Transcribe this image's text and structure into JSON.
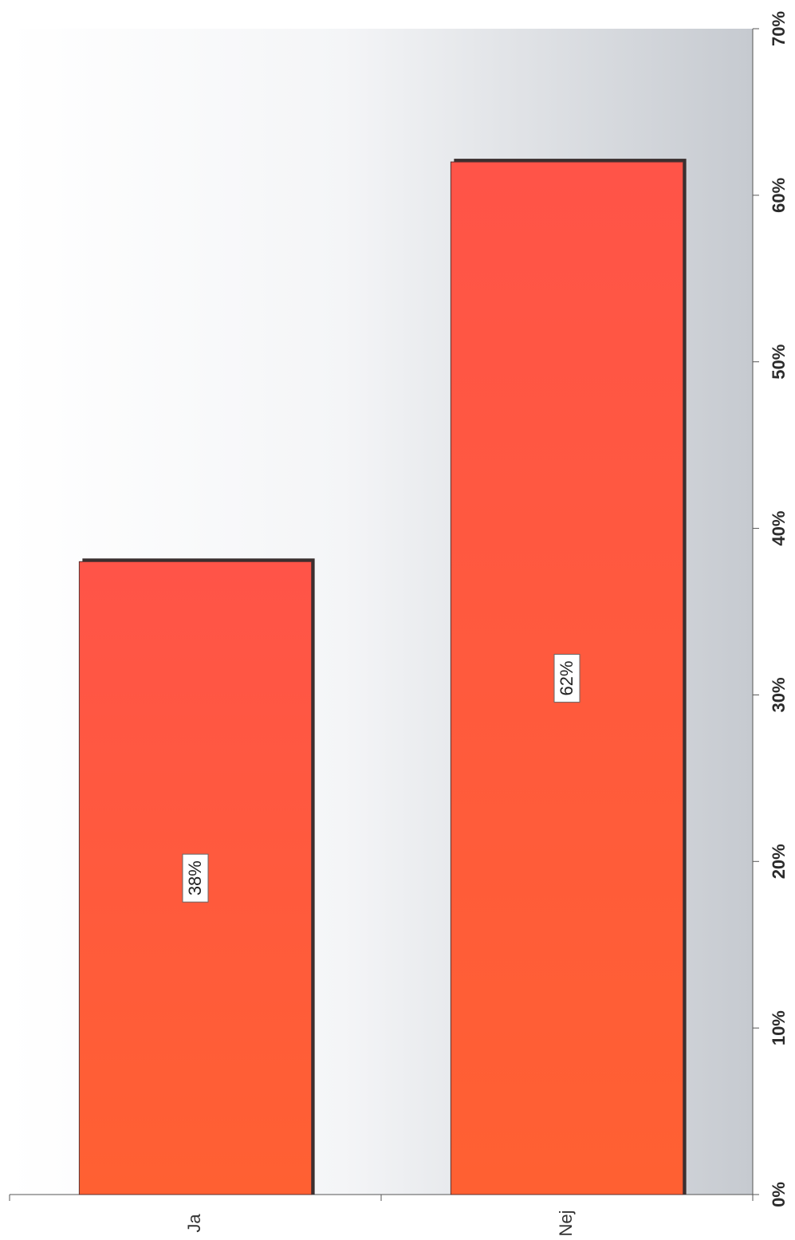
{
  "chart_data": {
    "type": "bar",
    "orientation": "horizontal",
    "categories": [
      "Ja",
      "Nej"
    ],
    "values": [
      38,
      62
    ],
    "data_labels": [
      "38%",
      "62%"
    ],
    "value_axis": {
      "range": [
        0,
        70
      ],
      "ticks": [
        0,
        10,
        20,
        30,
        40,
        50,
        60,
        70
      ],
      "tick_labels": [
        "0%",
        "10%",
        "20%",
        "30%",
        "40%",
        "50%",
        "60%",
        "70%"
      ]
    },
    "title": "",
    "xlabel": "",
    "ylabel": "",
    "grid": false,
    "legend": "none",
    "colors": {
      "bar": "#ff5a45",
      "bar_shadow": "#3a2f2f",
      "plot_background_start": "#ffffff",
      "plot_background_end": "#c8ccd2"
    }
  }
}
